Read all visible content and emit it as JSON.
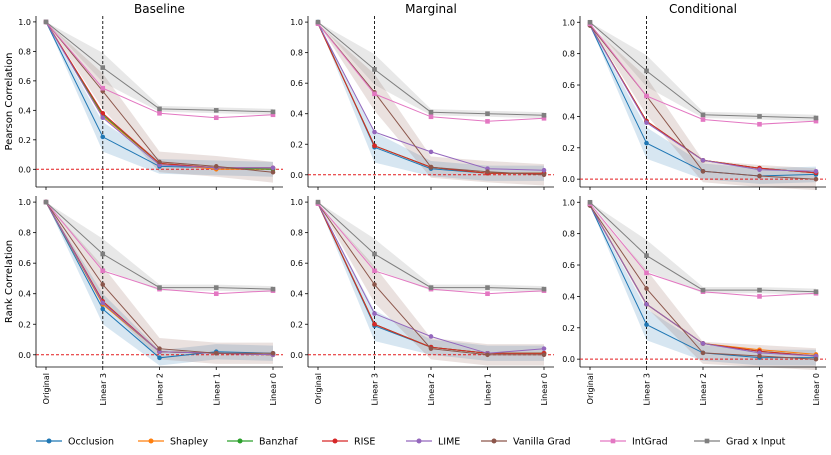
{
  "chart_data": {
    "type": "line",
    "x_categories": [
      "Original",
      "Linear 3",
      "Linear 2",
      "Linear 1",
      "Linear 0"
    ],
    "column_titles": [
      "Baseline",
      "Marginal",
      "Conditional"
    ],
    "row_ylabels": [
      "Pearson Correlation",
      "Rank Correlation"
    ],
    "y_ticks": [
      0.0,
      0.2,
      0.4,
      0.6,
      0.8,
      1.0
    ],
    "y_tick_labels": [
      "0.0",
      "0.2",
      "0.4",
      "0.6",
      "0.8",
      "1.0"
    ],
    "vline_at": "Linear 3",
    "hline_at": 0.0,
    "series": [
      {
        "name": "Occlusion",
        "color": "#1f77b4"
      },
      {
        "name": "Shapley",
        "color": "#ff7f0e"
      },
      {
        "name": "Banzhaf",
        "color": "#2ca02c"
      },
      {
        "name": "RISE",
        "color": "#d62728"
      },
      {
        "name": "LIME",
        "color": "#9467bd"
      },
      {
        "name": "Vanilla Grad",
        "color": "#8c564b"
      },
      {
        "name": "IntGrad",
        "color": "#e377c2"
      },
      {
        "name": "Grad x Input",
        "color": "#7f7f7f"
      }
    ],
    "panels": [
      {
        "row": 0,
        "col": 0,
        "ylim": [
          -0.12,
          1.04
        ],
        "values": {
          "Occlusion": [
            1.0,
            0.22,
            0.02,
            0.01,
            0.0
          ],
          "Shapley": [
            1.0,
            0.36,
            0.04,
            0.0,
            0.0
          ],
          "Banzhaf": [
            1.0,
            0.37,
            0.04,
            0.01,
            0.0
          ],
          "RISE": [
            1.0,
            0.38,
            0.04,
            0.01,
            0.01
          ],
          "LIME": [
            1.0,
            0.35,
            0.03,
            0.01,
            0.01
          ],
          "Vanilla Grad": [
            1.0,
            0.53,
            0.05,
            0.02,
            -0.02
          ],
          "IntGrad": [
            1.0,
            0.55,
            0.38,
            0.35,
            0.37
          ],
          "Grad x Input": [
            1.0,
            0.69,
            0.41,
            0.4,
            0.39
          ]
        }
      },
      {
        "row": 0,
        "col": 1,
        "ylim": [
          -0.08,
          1.04
        ],
        "values": {
          "Occlusion": [
            1.0,
            0.18,
            0.04,
            0.01,
            0.01
          ],
          "Shapley": [
            0.99,
            0.19,
            0.05,
            0.01,
            0.01
          ],
          "Banzhaf": [
            0.99,
            0.19,
            0.05,
            0.01,
            0.01
          ],
          "RISE": [
            0.99,
            0.19,
            0.05,
            0.01,
            0.01
          ],
          "LIME": [
            0.99,
            0.28,
            0.15,
            0.04,
            0.03
          ],
          "Vanilla Grad": [
            0.99,
            0.54,
            0.05,
            0.02,
            0.0
          ],
          "IntGrad": [
            0.99,
            0.53,
            0.38,
            0.35,
            0.37
          ],
          "Grad x Input": [
            1.0,
            0.69,
            0.41,
            0.4,
            0.39
          ]
        }
      },
      {
        "row": 0,
        "col": 2,
        "ylim": [
          -0.05,
          1.04
        ],
        "values": {
          "Occlusion": [
            0.98,
            0.23,
            0.05,
            0.02,
            0.03
          ],
          "Shapley": [
            0.98,
            0.37,
            0.12,
            0.07,
            0.04
          ],
          "Banzhaf": [
            0.98,
            0.37,
            0.12,
            0.07,
            0.04
          ],
          "RISE": [
            0.98,
            0.37,
            0.12,
            0.07,
            0.04
          ],
          "LIME": [
            0.98,
            0.36,
            0.12,
            0.06,
            0.05
          ],
          "Vanilla Grad": [
            0.98,
            0.53,
            0.05,
            0.02,
            0.0
          ],
          "IntGrad": [
            0.99,
            0.53,
            0.38,
            0.35,
            0.37
          ],
          "Grad x Input": [
            1.0,
            0.69,
            0.41,
            0.4,
            0.39
          ]
        }
      },
      {
        "row": 1,
        "col": 0,
        "ylim": [
          -0.08,
          1.04
        ],
        "values": {
          "Occlusion": [
            1.0,
            0.3,
            -0.02,
            0.02,
            0.01
          ],
          "Shapley": [
            1.0,
            0.33,
            0.02,
            0.01,
            0.0
          ],
          "Banzhaf": [
            1.0,
            0.34,
            0.02,
            0.01,
            0.0
          ],
          "RISE": [
            1.0,
            0.35,
            0.02,
            0.01,
            0.0
          ],
          "LIME": [
            1.0,
            0.34,
            0.02,
            0.01,
            0.0
          ],
          "Vanilla Grad": [
            1.0,
            0.46,
            0.04,
            0.01,
            0.01
          ],
          "IntGrad": [
            1.0,
            0.55,
            0.43,
            0.4,
            0.42
          ],
          "Grad x Input": [
            1.0,
            0.66,
            0.44,
            0.44,
            0.43
          ]
        }
      },
      {
        "row": 1,
        "col": 1,
        "ylim": [
          -0.08,
          1.04
        ],
        "values": {
          "Occlusion": [
            0.99,
            0.19,
            0.05,
            0.01,
            0.01
          ],
          "Shapley": [
            0.99,
            0.2,
            0.05,
            0.01,
            0.01
          ],
          "Banzhaf": [
            0.99,
            0.2,
            0.05,
            0.01,
            0.01
          ],
          "RISE": [
            0.99,
            0.2,
            0.05,
            0.01,
            0.01
          ],
          "LIME": [
            0.99,
            0.27,
            0.12,
            0.01,
            0.04
          ],
          "Vanilla Grad": [
            0.99,
            0.46,
            0.04,
            0.0,
            0.0
          ],
          "IntGrad": [
            0.99,
            0.55,
            0.43,
            0.4,
            0.42
          ],
          "Grad x Input": [
            1.0,
            0.66,
            0.44,
            0.44,
            0.43
          ]
        }
      },
      {
        "row": 1,
        "col": 2,
        "ylim": [
          -0.05,
          1.04
        ],
        "values": {
          "Occlusion": [
            0.98,
            0.22,
            0.04,
            0.01,
            0.01
          ],
          "Shapley": [
            0.98,
            0.35,
            0.1,
            0.06,
            0.03
          ],
          "Banzhaf": [
            0.98,
            0.35,
            0.1,
            0.05,
            0.02
          ],
          "RISE": [
            0.98,
            0.35,
            0.1,
            0.05,
            0.02
          ],
          "LIME": [
            0.98,
            0.35,
            0.1,
            0.04,
            0.02
          ],
          "Vanilla Grad": [
            0.98,
            0.45,
            0.04,
            0.02,
            0.0
          ],
          "IntGrad": [
            0.99,
            0.55,
            0.43,
            0.4,
            0.42
          ],
          "Grad x Input": [
            1.0,
            0.66,
            0.44,
            0.44,
            0.43
          ]
        }
      }
    ],
    "bands": [
      {
        "series": "Occlusion",
        "halfwidth": [
          0.0,
          0.1,
          0.05,
          0.05,
          0.05
        ]
      },
      {
        "series": "Vanilla Grad",
        "halfwidth": [
          0.0,
          0.12,
          0.07,
          0.07,
          0.07
        ]
      },
      {
        "series": "Grad x Input",
        "halfwidth": [
          0.0,
          0.1,
          0.02,
          0.02,
          0.02
        ]
      }
    ],
    "legend_position": "bottom"
  }
}
